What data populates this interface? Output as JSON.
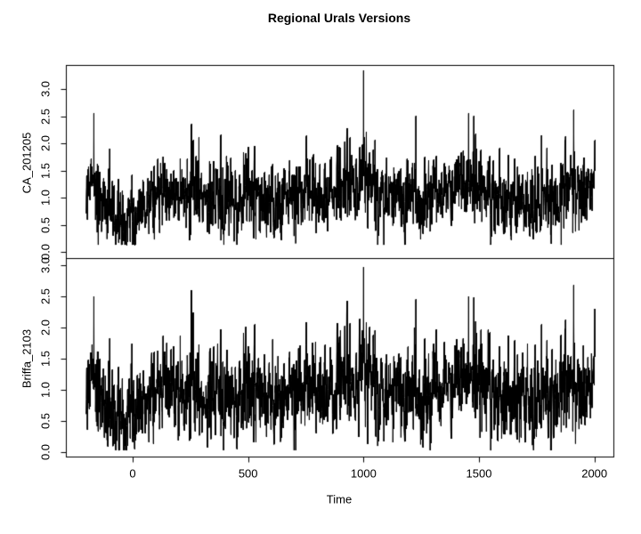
{
  "title": "Regional Urals Versions",
  "chart_data": {
    "type": "line",
    "title": "Regional Urals Versions",
    "xlabel": "Time",
    "x_range": [
      -202,
      2000
    ],
    "x_ticks": [
      0,
      500,
      1000,
      1500,
      2000
    ],
    "grid": false,
    "legend": "none",
    "line_color": "#000000",
    "background_color": "#ffffff",
    "layout_hint": "two stacked panels sharing the x axis, R base-graphics style",
    "base_envelope": [
      [
        -202,
        1.35
      ],
      [
        -175,
        1.25
      ],
      [
        -150,
        1.0
      ],
      [
        -120,
        0.85
      ],
      [
        -90,
        0.7
      ],
      [
        -60,
        0.6
      ],
      [
        -30,
        0.55
      ],
      [
        0,
        0.6
      ],
      [
        40,
        0.75
      ],
      [
        80,
        0.95
      ],
      [
        130,
        1.05
      ],
      [
        200,
        1.05
      ],
      [
        260,
        1.15
      ],
      [
        320,
        1.05
      ],
      [
        400,
        1.0
      ],
      [
        470,
        0.95
      ],
      [
        540,
        1.0
      ],
      [
        600,
        0.9
      ],
      [
        660,
        0.95
      ],
      [
        720,
        1.05
      ],
      [
        800,
        1.0
      ],
      [
        870,
        1.1
      ],
      [
        930,
        1.2
      ],
      [
        980,
        1.35
      ],
      [
        1000,
        1.45
      ],
      [
        1020,
        1.3
      ],
      [
        1060,
        1.1
      ],
      [
        1120,
        1.0
      ],
      [
        1180,
        1.05
      ],
      [
        1250,
        1.0
      ],
      [
        1320,
        1.05
      ],
      [
        1380,
        1.1
      ],
      [
        1430,
        1.3
      ],
      [
        1470,
        1.25
      ],
      [
        1520,
        1.1
      ],
      [
        1580,
        1.0
      ],
      [
        1650,
        0.95
      ],
      [
        1720,
        0.9
      ],
      [
        1800,
        0.95
      ],
      [
        1870,
        1.0
      ],
      [
        1930,
        1.1
      ],
      [
        1970,
        1.2
      ],
      [
        2000,
        1.45
      ]
    ],
    "panels": [
      {
        "ylabel": "CA_201205",
        "y_range": [
          0.0,
          3.4
        ],
        "y_ticks": [
          0.0,
          0.5,
          1.0,
          1.5,
          2.0,
          2.5,
          3.0
        ],
        "y_tick_labels": [
          "0.0",
          "0.5",
          "1.0",
          "1.5",
          "2.0",
          "2.5",
          "3.0"
        ],
        "series": {
          "seed": 20120501,
          "phi": 0.35,
          "sigma": 0.31,
          "min": 0.13,
          "max": 3.34,
          "spikes": [
            [
              -168,
              2.55
            ],
            [
              -100,
              1.9
            ],
            [
              253,
              2.35
            ],
            [
              287,
              2.1
            ],
            [
              380,
              2.15
            ],
            [
              940,
              2.1
            ],
            [
              1000,
              3.34
            ],
            [
              1012,
              2.2
            ],
            [
              1226,
              2.5
            ],
            [
              1455,
              2.55
            ],
            [
              1477,
              2.5
            ],
            [
              2000,
              2.05
            ],
            [
              -28,
              0.18
            ],
            [
              -60,
              0.3
            ],
            [
              90,
              0.35
            ],
            [
              612,
              0.25
            ],
            [
              640,
              0.35
            ],
            [
              1705,
              0.45
            ]
          ]
        }
      },
      {
        "ylabel": "Briffa_2103",
        "y_range": [
          0.0,
          3.0
        ],
        "y_ticks": [
          0.0,
          0.5,
          1.0,
          1.5,
          2.0,
          2.5,
          3.0
        ],
        "y_tick_labels": [
          "0.0",
          "0.5",
          "1.0",
          "1.5",
          "2.0",
          "2.5",
          "3.0"
        ],
        "series": {
          "derive_from": 0,
          "scale": 0.97,
          "offset": -0.03,
          "seed": 21030,
          "phi": 0.3,
          "sigma": 0.16,
          "min": 0.03,
          "max": 3.0,
          "spikes": [
            [
              -168,
              2.5
            ],
            [
              253,
              2.6
            ],
            [
              1000,
              2.97
            ],
            [
              1226,
              2.45
            ],
            [
              1455,
              2.5
            ],
            [
              2000,
              2.3
            ],
            [
              -28,
              0.1
            ],
            [
              612,
              0.12
            ]
          ]
        }
      }
    ]
  }
}
